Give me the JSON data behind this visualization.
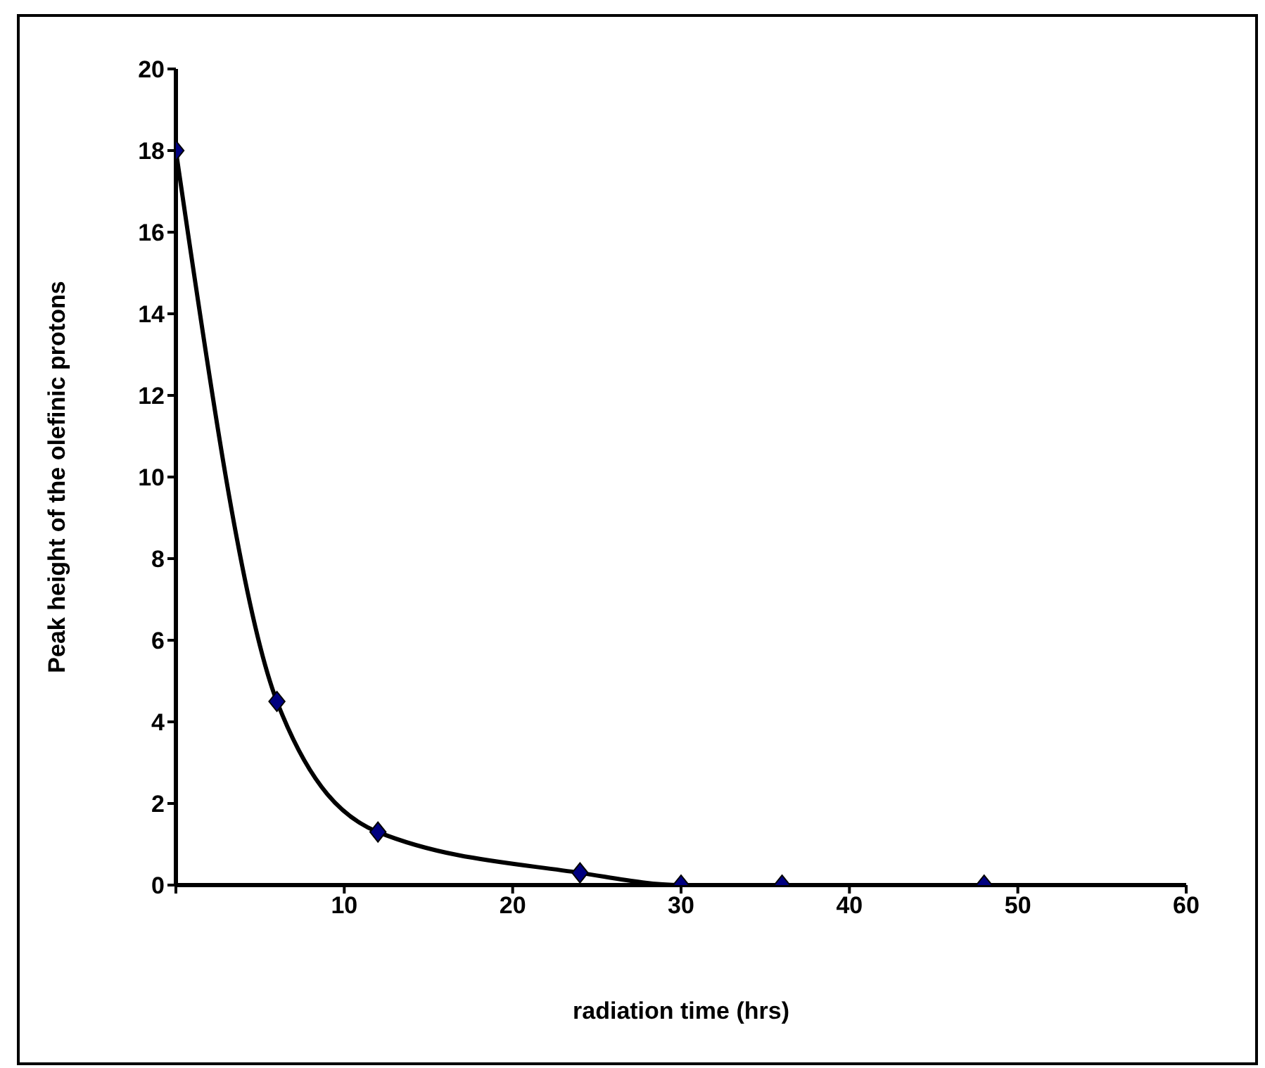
{
  "chart_data": {
    "type": "line",
    "xlabel": "radiation time (hrs)",
    "ylabel": "Peak height of the olefinic protons",
    "x": [
      0,
      6,
      12,
      24,
      30,
      36,
      48
    ],
    "series": [
      {
        "color": "#000000",
        "colors": [
          "#000080",
          "#000080",
          "#000080",
          "#000080",
          "#000080",
          "#000080",
          "#000080"
        ],
        "values": [
          18,
          4.5,
          1.3,
          0.3,
          0,
          0,
          0
        ]
      }
    ],
    "xlim": [
      0,
      60
    ],
    "xticks": [
      {
        "value": 0,
        "label": null
      },
      10,
      20,
      30,
      40,
      50,
      60
    ],
    "ylim": [
      0,
      20
    ],
    "yticks": [
      0,
      2,
      4,
      6,
      8,
      10,
      12,
      14,
      16,
      18,
      20
    ],
    "grid": false,
    "legend": false,
    "marker": "diamond",
    "line_style": "solid"
  }
}
